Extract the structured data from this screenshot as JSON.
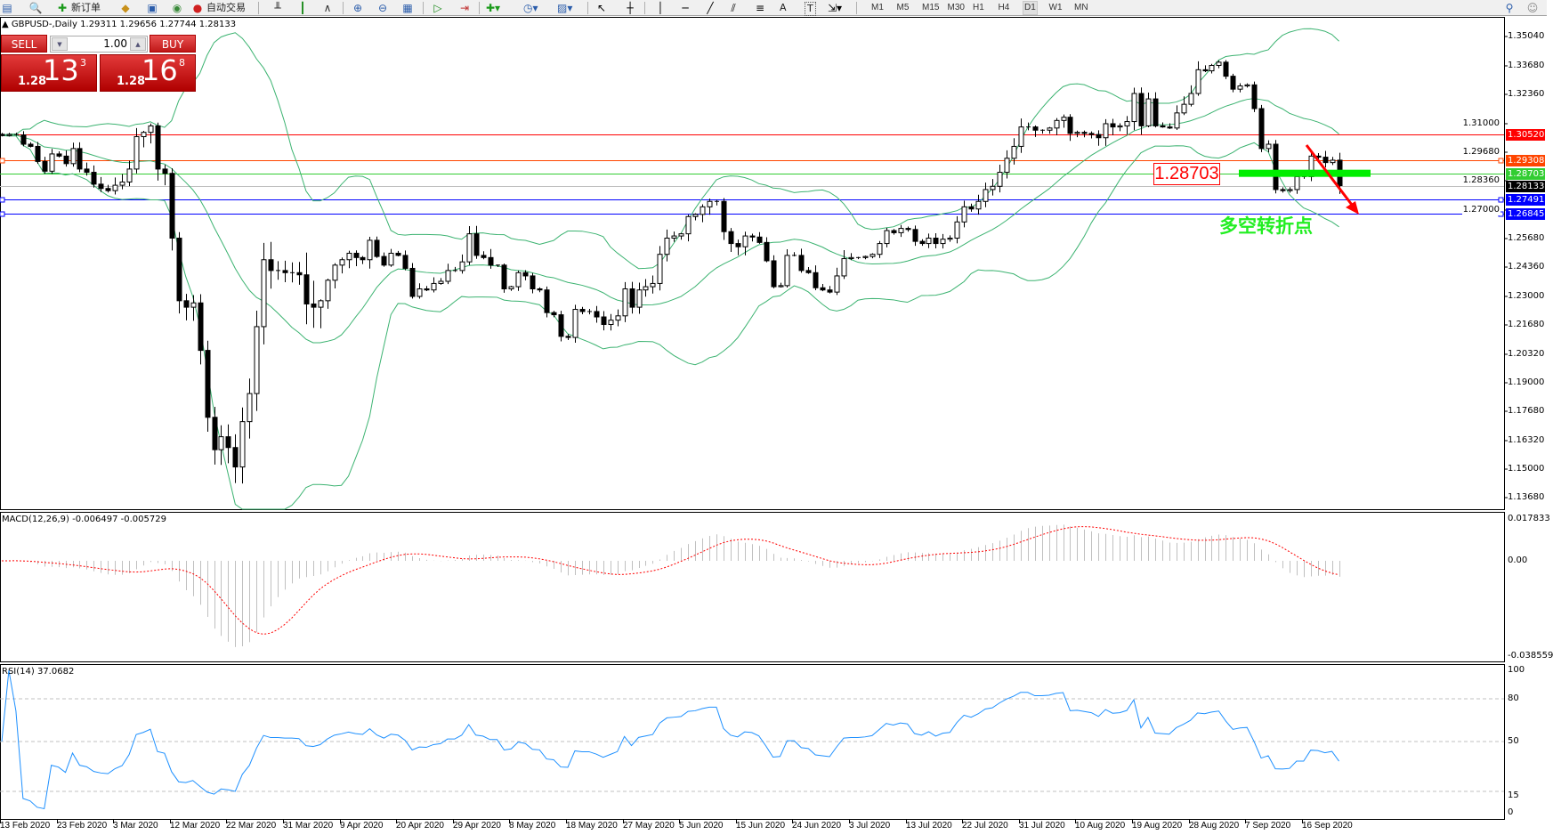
{
  "toolbar": {
    "new_order_label": "新订单",
    "auto_trading_label": "自动交易",
    "timeframes": [
      "M1",
      "M5",
      "M15",
      "M30",
      "H1",
      "H4",
      "D1",
      "W1",
      "MN"
    ],
    "active_timeframe": "D1",
    "text_tool": "A",
    "label_tool": "T"
  },
  "chart_title": "GBPUSD-,Daily  1.29311 1.29656 1.27744 1.28133",
  "trade_panel": {
    "sell_label": "SELL",
    "buy_label": "BUY",
    "lot": "1.00",
    "sell_price": {
      "prefix": "1.28",
      "big": "13",
      "sup": "3"
    },
    "buy_price": {
      "prefix": "1.28",
      "big": "16",
      "sup": "8"
    }
  },
  "price_axis": [
    "1.35040",
    "1.33680",
    "1.32360",
    "1.31000",
    "1.29680",
    "1.28360",
    "1.27000",
    "1.25680",
    "1.24360",
    "1.23000",
    "1.21680",
    "1.20320",
    "1.19000",
    "1.17680",
    "1.16320",
    "1.15000",
    "1.13680"
  ],
  "price_lines": [
    {
      "label": "1.30520",
      "color": "#ff0000",
      "line": "#ff0000"
    },
    {
      "label": "1.29308",
      "color": "#ff4500",
      "line": "#ff4500",
      "marker": true
    },
    {
      "label": "1.28703",
      "color": "#32cd32",
      "line": "#32cd32"
    },
    {
      "label": "1.28133",
      "color": "#000000",
      "line": "#c0c0c0"
    },
    {
      "label": "1.27491",
      "color": "#0000ff",
      "line": "#0000ff",
      "marker": true
    },
    {
      "label": "1.26845",
      "color": "#0000ff",
      "line": "#0000ff",
      "marker": true
    }
  ],
  "annotation": {
    "level_label": "1.28703",
    "text": "多空转折点",
    "arrow_color": "#ff0000",
    "bar_color": "#00ee00"
  },
  "macd": {
    "title": "MACD(12,26,9) -0.006497 -0.005729",
    "axis": [
      "0.017833",
      "0.00",
      "-0.038559"
    ]
  },
  "rsi": {
    "title": "RSI(14) 37.0682",
    "axis": [
      "100",
      "80",
      "50",
      "15",
      "0"
    ]
  },
  "date_axis": [
    "13 Feb 2020",
    "23 Feb 2020",
    "3 Mar 2020",
    "12 Mar 2020",
    "22 Mar 2020",
    "31 Mar 2020",
    "9 Apr 2020",
    "20 Apr 2020",
    "29 Apr 2020",
    "8 May 2020",
    "18 May 2020",
    "27 May 2020",
    "5 Jun 2020",
    "15 Jun 2020",
    "24 Jun 2020",
    "3 Jul 2020",
    "13 Jul 2020",
    "22 Jul 2020",
    "31 Jul 2020",
    "10 Aug 2020",
    "19 Aug 2020",
    "28 Aug 2020",
    "7 Sep 2020",
    "16 Sep 2020"
  ],
  "chart_data": {
    "type": "candlestick",
    "symbol": "GBPUSD-",
    "timeframe": "Daily",
    "ylim": [
      1.1368,
      1.3504
    ],
    "grid": false,
    "last_bar": {
      "open": 1.29311,
      "high": 1.29656,
      "low": 1.27744,
      "close": 1.28133
    },
    "close": [
      1.3045,
      1.305,
      1.3048,
      1.3005,
      1.2995,
      1.2925,
      1.288,
      1.296,
      1.295,
      1.2915,
      1.2985,
      1.289,
      1.2875,
      1.282,
      1.28,
      1.279,
      1.2815,
      1.283,
      1.289,
      1.304,
      1.306,
      1.309,
      1.289,
      1.287,
      1.257,
      1.228,
      1.225,
      1.227,
      1.205,
      1.174,
      1.159,
      1.165,
      1.16,
      1.151,
      1.172,
      1.185,
      1.216,
      1.247,
      1.242,
      1.242,
      1.241,
      1.241,
      1.24,
      1.2265,
      1.225,
      1.228,
      1.2375,
      1.2445,
      1.247,
      1.25,
      1.248,
      1.247,
      1.256,
      1.2485,
      1.2445,
      1.25,
      1.249,
      1.243,
      1.23,
      1.2335,
      1.233,
      1.236,
      1.237,
      1.242,
      1.242,
      1.246,
      1.259,
      1.249,
      1.248,
      1.2445,
      1.2445,
      1.2335,
      1.2345,
      1.241,
      1.2395,
      1.2335,
      1.233,
      1.2225,
      1.2215,
      1.2115,
      1.211,
      1.224,
      1.223,
      1.223,
      1.2205,
      1.217,
      1.219,
      1.221,
      1.2335,
      1.225,
      1.233,
      1.2345,
      1.236,
      1.2495,
      1.257,
      1.258,
      1.259,
      1.267,
      1.268,
      1.2715,
      1.274,
      1.274,
      1.26,
      1.2545,
      1.253,
      1.258,
      1.2575,
      1.255,
      1.2465,
      1.2345,
      1.235,
      1.249,
      1.249,
      1.242,
      1.241,
      1.234,
      1.233,
      1.232,
      1.2395,
      1.2475,
      1.248,
      1.248,
      1.2485,
      1.2495,
      1.2545,
      1.2605,
      1.2595,
      1.2615,
      1.261,
      1.2555,
      1.2545,
      1.257,
      1.2545,
      1.2565,
      1.257,
      1.2645,
      1.2715,
      1.2705,
      1.274,
      1.2795,
      1.281,
      1.2875,
      1.294,
      1.2995,
      1.3085,
      1.3085,
      1.307,
      1.307,
      1.308,
      1.3115,
      1.313,
      1.3055,
      1.306,
      1.3055,
      1.305,
      1.3035,
      1.31,
      1.3085,
      1.309,
      1.311,
      1.324,
      1.309,
      1.3215,
      1.309,
      1.3085,
      1.308,
      1.315,
      1.319,
      1.324,
      1.335,
      1.3345,
      1.337,
      1.3385,
      1.332,
      1.326,
      1.3275,
      1.328,
      1.317,
      1.2985,
      1.3005,
      1.2795,
      1.279,
      1.2795,
      1.2855,
      1.2855,
      1.295,
      1.2945,
      1.292,
      1.2931,
      1.28133
    ],
    "indicators": {
      "bollinger": {
        "period": 20,
        "deviation": 2,
        "color": "#3cb371"
      },
      "macd": {
        "fast": 12,
        "slow": 26,
        "signal": 9,
        "ylim": [
          -0.038559,
          0.017833
        ],
        "histogram_color": "#c0c0c0",
        "signal_color": "#ff0000"
      },
      "rsi": {
        "period": 14,
        "levels": [
          80,
          50,
          15
        ],
        "ylim": [
          0,
          100
        ],
        "color": "#1e90ff"
      }
    },
    "bull_color": "#ffffff",
    "bear_color": "#000000"
  }
}
